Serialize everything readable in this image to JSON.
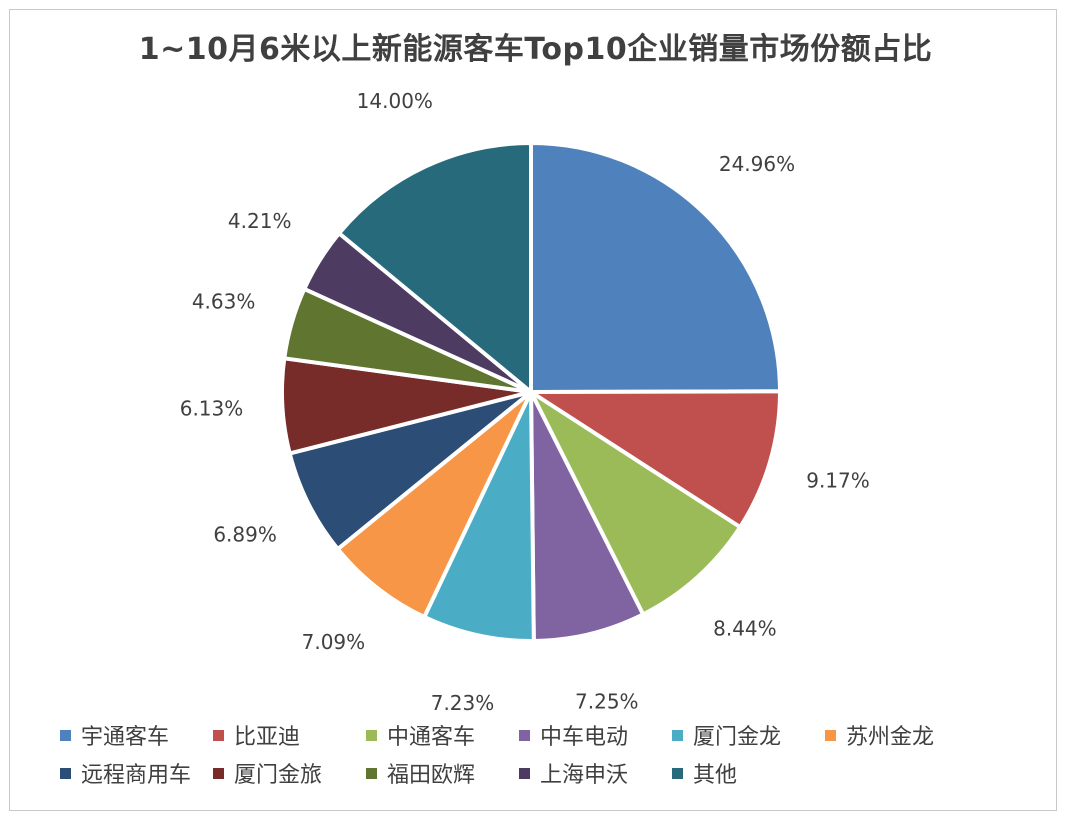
{
  "chart_data": {
    "type": "pie",
    "title": "1~10月6米以上新能源客车Top10企业销量市场份额占比",
    "slices": [
      {
        "name": "宇通客车",
        "value": 24.96,
        "label": "24.96%",
        "color": "#4f81bd"
      },
      {
        "name": "比亚迪",
        "value": 9.17,
        "label": "9.17%",
        "color": "#c0504d"
      },
      {
        "name": "中通客车",
        "value": 8.44,
        "label": "8.44%",
        "color": "#9bbb59"
      },
      {
        "name": "中车电动",
        "value": 7.25,
        "label": "7.25%",
        "color": "#8064a2"
      },
      {
        "name": "厦门金龙",
        "value": 7.23,
        "label": "7.23%",
        "color": "#4bacc6"
      },
      {
        "name": "苏州金龙",
        "value": 7.09,
        "label": "7.09%",
        "color": "#f79646"
      },
      {
        "name": "远程商用车",
        "value": 6.89,
        "label": "6.89%",
        "color": "#2c4d75"
      },
      {
        "name": "厦门金旅",
        "value": 6.13,
        "label": "6.13%",
        "color": "#772c2a"
      },
      {
        "name": "福田欧辉",
        "value": 4.63,
        "label": "4.63%",
        "color": "#5f7530"
      },
      {
        "name": "上海申沃",
        "value": 4.21,
        "label": "4.21%",
        "color": "#4d3b62"
      },
      {
        "name": "其他",
        "value": 14.0,
        "label": "14.00%",
        "color": "#276a7c"
      }
    ],
    "legend_position": "bottom"
  }
}
